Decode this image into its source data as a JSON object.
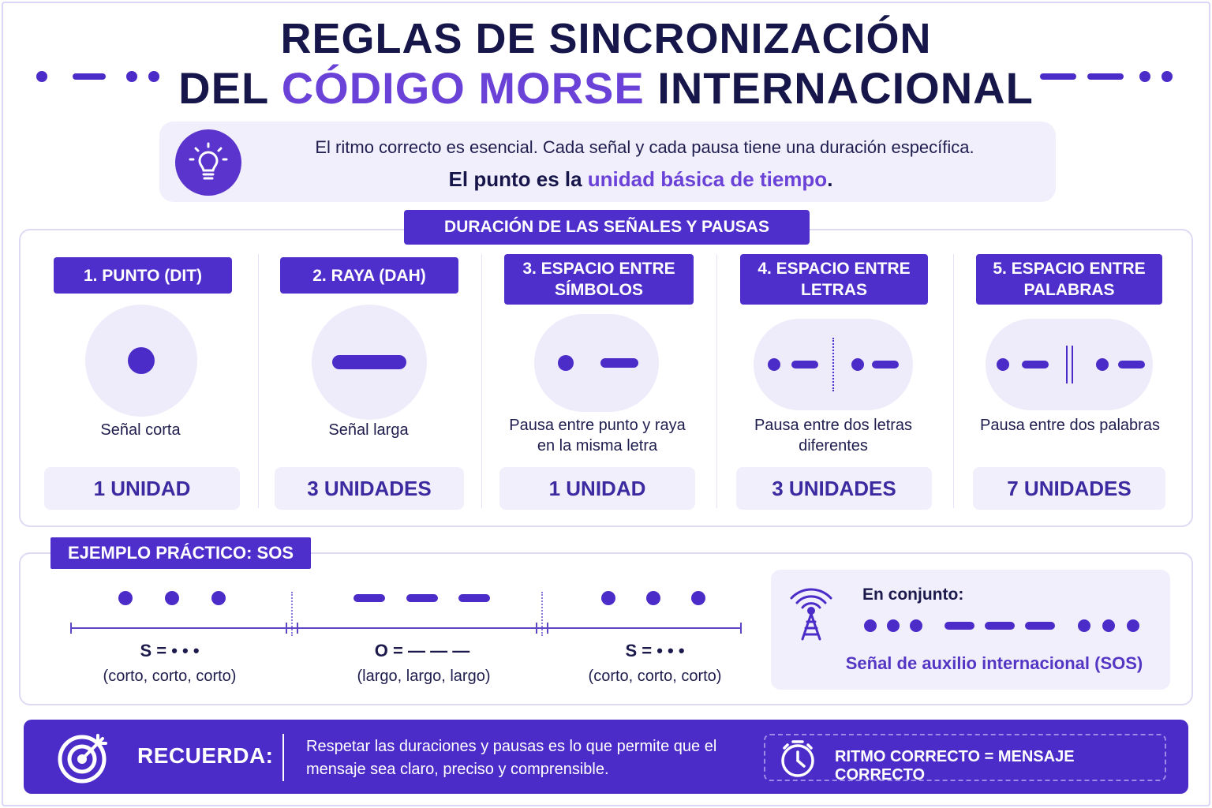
{
  "title": {
    "line1": "REGLAS DE SINCRONIZACIÓN",
    "line2_prefix": "DEL ",
    "line2_accent": "CÓDIGO MORSE",
    "line2_suffix": " INTERNACIONAL"
  },
  "intro": {
    "icon": "lightbulb-icon",
    "text1": "El ritmo correcto es esencial. Cada señal y cada pausa tiene una duración específica.",
    "text2_prefix": "El punto es la ",
    "text2_accent": "unidad básica de tiempo",
    "text2_suffix": "."
  },
  "durations": {
    "label": "DURACIÓN DE LAS SEÑALES Y PAUSAS",
    "items": [
      {
        "title": "1. PUNTO (DIT)",
        "desc": "Señal corta",
        "unit": "1 UNIDAD"
      },
      {
        "title": "2. RAYA (DAH)",
        "desc": "Señal larga",
        "unit": "3 UNIDADES"
      },
      {
        "title": "3. ESPACIO ENTRE SÍMBOLOS",
        "desc": "Pausa entre punto y raya en la misma letra",
        "unit": "1 UNIDAD"
      },
      {
        "title": "4. ESPACIO ENTRE LETRAS",
        "desc": "Pausa entre dos letras diferentes",
        "unit": "3 UNIDADES"
      },
      {
        "title": "5. ESPACIO ENTRE PALABRAS",
        "desc": "Pausa entre dos palabras",
        "unit": "7 UNIDADES"
      }
    ]
  },
  "example": {
    "label": "EJEMPLO PRÁCTICO: SOS",
    "letters": [
      {
        "code": "S = • • •",
        "sub": "(corto, corto, corto)"
      },
      {
        "code": "O = — — —",
        "sub": "(largo, largo, largo)"
      },
      {
        "code": "S = • • •",
        "sub": "(corto, corto, corto)"
      }
    ],
    "combined_label": "En conjunto:",
    "combined_icon": "radio-tower-icon",
    "combined_caption": "Señal de auxilio internacional (SOS)"
  },
  "footer": {
    "icon": "target-icon",
    "label": "RECUERDA:",
    "message": "Respetar las duraciones y pausas es lo que permite que el mensaje sea claro, preciso y comprensible.",
    "timer_icon": "stopwatch-icon",
    "motto": "RITMO CORRECTO = MENSAJE CORRECTO"
  },
  "colors": {
    "primary": "#4f2fcc",
    "accent": "#6a42d8",
    "navy": "#16164a",
    "light": "#f1effb"
  }
}
